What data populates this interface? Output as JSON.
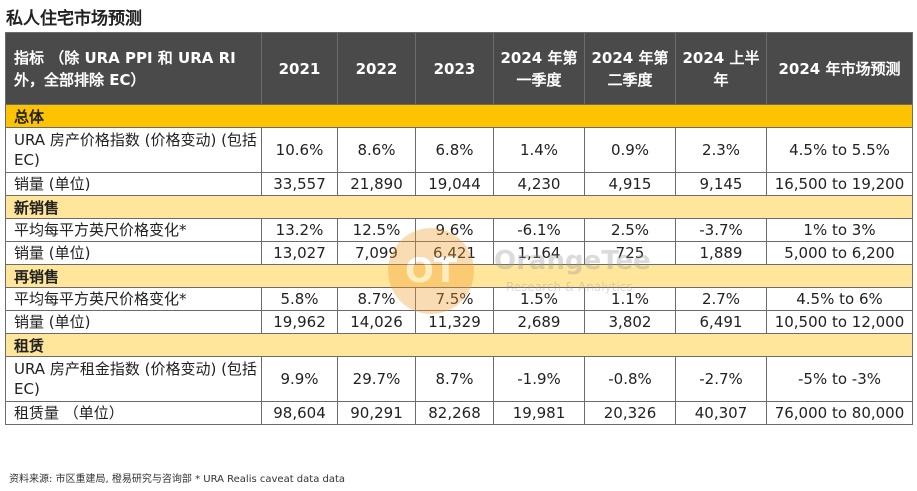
{
  "title": "私人住宅市场预测",
  "header": {
    "indicator": "指标 （除 URA PPI 和 URA RI 外，全部排除 EC）",
    "columns": [
      "2021",
      "2022",
      "2023",
      "2024 年第一季度",
      "2024 年第二季度",
      "2024 上半年",
      "2024 年市场预测"
    ]
  },
  "sections": [
    {
      "name": "总体",
      "rows": [
        {
          "label": "URA 房产价格指数 (价格变动) (包括 EC)",
          "values": [
            "10.6%",
            "8.6%",
            "6.8%",
            "1.4%",
            "0.9%",
            "2.3%",
            "4.5% to 5.5%"
          ]
        },
        {
          "label": "销量 (单位)",
          "values": [
            "33,557",
            "21,890",
            "19,044",
            "4,230",
            "4,915",
            "9,145",
            "16,500 to 19,200"
          ]
        }
      ]
    },
    {
      "name": "新销售",
      "rows": [
        {
          "label": "平均每平方英尺价格变化*",
          "values": [
            "13.2%",
            "12.5%",
            "9.6%",
            "-6.1%",
            "2.5%",
            "-3.7%",
            "1% to 3%"
          ]
        },
        {
          "label": "销量 (单位)",
          "values": [
            "13,027",
            "7,099",
            "6,421",
            "1,164",
            "725",
            "1,889",
            "5,000 to 6,200"
          ]
        }
      ]
    },
    {
      "name": "再销售",
      "rows": [
        {
          "label": "平均每平方英尺价格变化*",
          "values": [
            "5.8%",
            "8.7%",
            "7.5%",
            "1.5%",
            "1.1%",
            "2.7%",
            "4.5% to 6%"
          ]
        },
        {
          "label": "销量 (单位)",
          "values": [
            "19,962",
            "14,026",
            "11,329",
            "2,689",
            "3,802",
            "6,491",
            "10,500 to 12,000"
          ]
        }
      ]
    },
    {
      "name": "租赁",
      "rows": [
        {
          "label": "URA 房产租金指数 (价格变动) (包括 EC)",
          "values": [
            "9.9%",
            "29.7%",
            "8.7%",
            "-1.9%",
            "-0.8%",
            "-2.7%",
            "-5% to -3%"
          ]
        },
        {
          "label": "租赁量 （单位）",
          "values": [
            "98,604",
            "90,291",
            "82,268",
            "19,981",
            "20,326",
            "40,307",
            "76,000 to 80,000"
          ]
        }
      ]
    }
  ],
  "footnote": "资料来源: 市区重建局, 橙易研究与咨询部    * URA Realis caveat data data",
  "watermark": {
    "logo": "OT",
    "name": "OrangeTee",
    "sub": "Research & Analytics"
  },
  "colors": {
    "header_bg": "#4a4a4a",
    "section_dark": "#fdc200",
    "section_light": "#ffe69a",
    "watermark": "#f39c2b"
  }
}
